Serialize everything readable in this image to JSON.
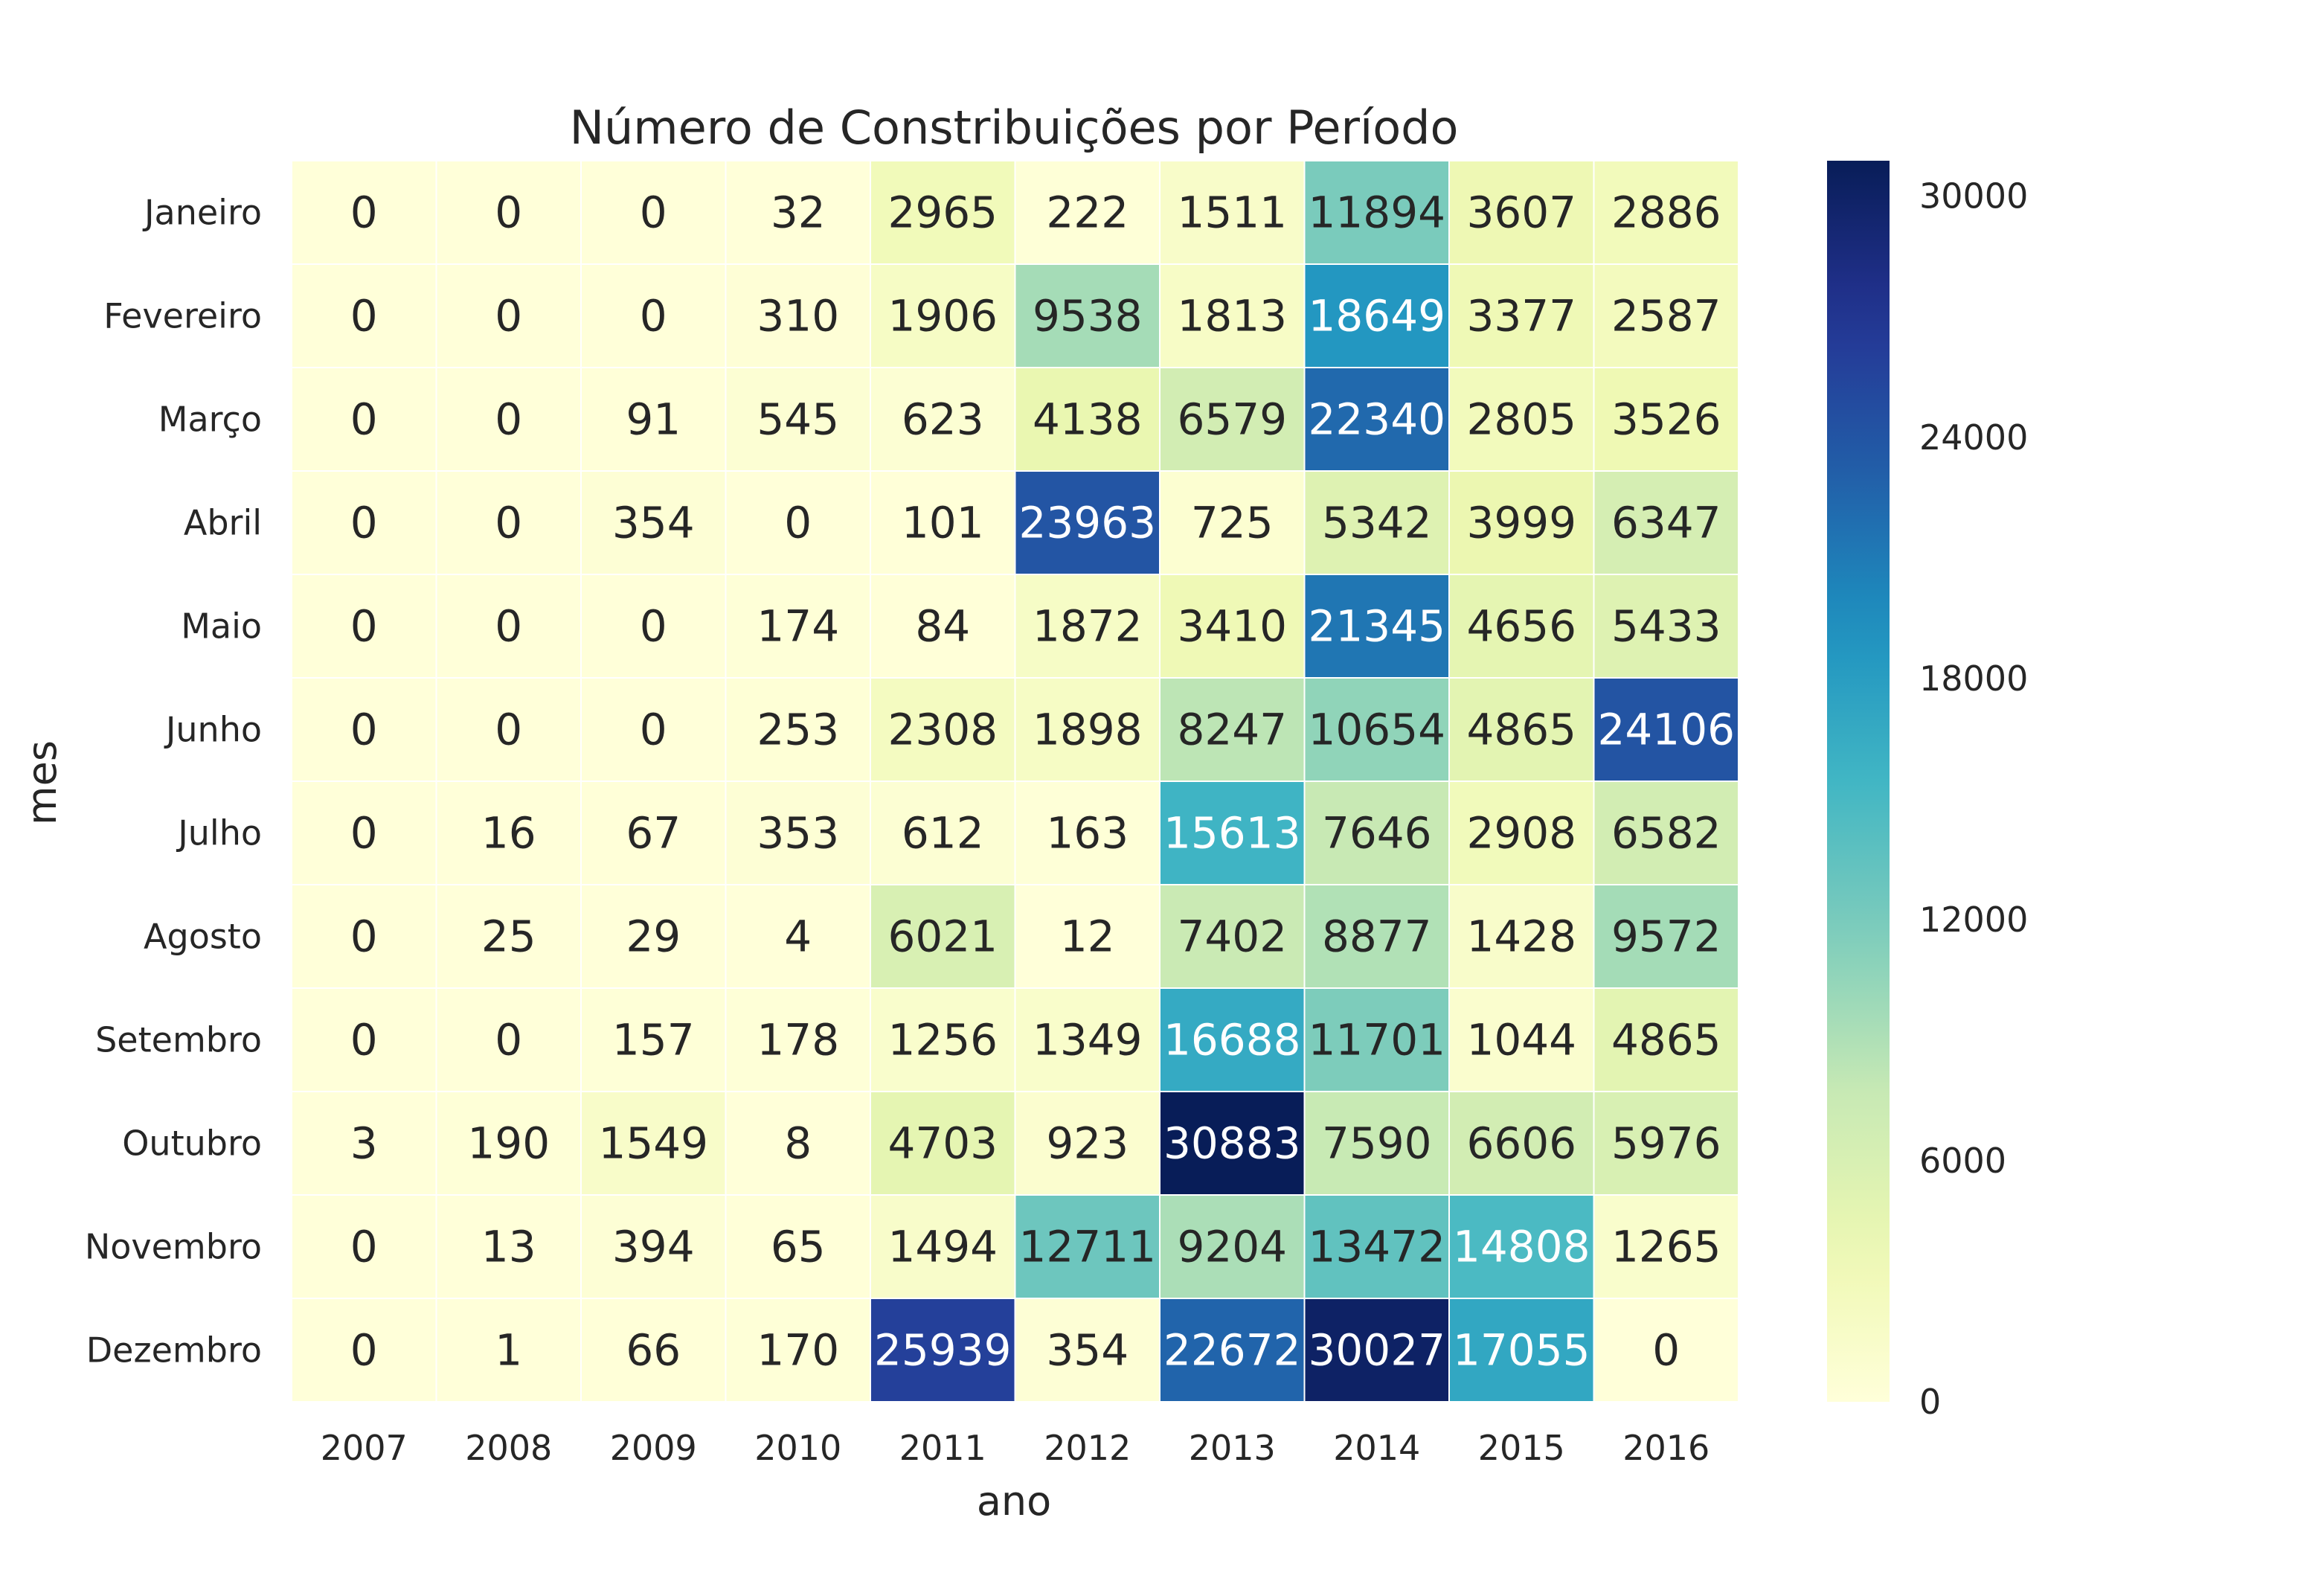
{
  "chart_data": {
    "type": "heatmap",
    "title": "Número de Constribuições por Período",
    "xlabel": "ano",
    "ylabel": "mes",
    "x": [
      "2007",
      "2008",
      "2009",
      "2010",
      "2011",
      "2012",
      "2013",
      "2014",
      "2015",
      "2016"
    ],
    "y": [
      "Janeiro",
      "Fevereiro",
      "Março",
      "Abril",
      "Maio",
      "Junho",
      "Julho",
      "Agosto",
      "Setembro",
      "Outubro",
      "Novembro",
      "Dezembro"
    ],
    "values": [
      [
        0,
        0,
        0,
        32,
        2965,
        222,
        1511,
        11894,
        3607,
        2886
      ],
      [
        0,
        0,
        0,
        310,
        1906,
        9538,
        1813,
        18649,
        3377,
        2587
      ],
      [
        0,
        0,
        91,
        545,
        623,
        4138,
        6579,
        22340,
        2805,
        3526
      ],
      [
        0,
        0,
        354,
        0,
        101,
        23963,
        725,
        5342,
        3999,
        6347
      ],
      [
        0,
        0,
        0,
        174,
        84,
        1872,
        3410,
        21345,
        4656,
        5433
      ],
      [
        0,
        0,
        0,
        253,
        2308,
        1898,
        8247,
        10654,
        4865,
        24106
      ],
      [
        0,
        16,
        67,
        353,
        612,
        163,
        15613,
        7646,
        2908,
        6582
      ],
      [
        0,
        25,
        29,
        4,
        6021,
        12,
        7402,
        8877,
        1428,
        9572
      ],
      [
        0,
        0,
        157,
        178,
        1256,
        1349,
        16688,
        11701,
        1044,
        4865
      ],
      [
        3,
        190,
        1549,
        8,
        4703,
        923,
        30883,
        7590,
        6606,
        5976
      ],
      [
        0,
        13,
        394,
        65,
        1494,
        12711,
        9204,
        13472,
        14808,
        1265
      ],
      [
        0,
        1,
        66,
        170,
        25939,
        354,
        22672,
        30027,
        17055,
        0
      ]
    ],
    "colorbar": {
      "min": 0,
      "max": 30883,
      "ticks": [
        "0",
        "6000",
        "12000",
        "18000",
        "24000",
        "30000"
      ],
      "colormap": "YlGnBu"
    }
  }
}
